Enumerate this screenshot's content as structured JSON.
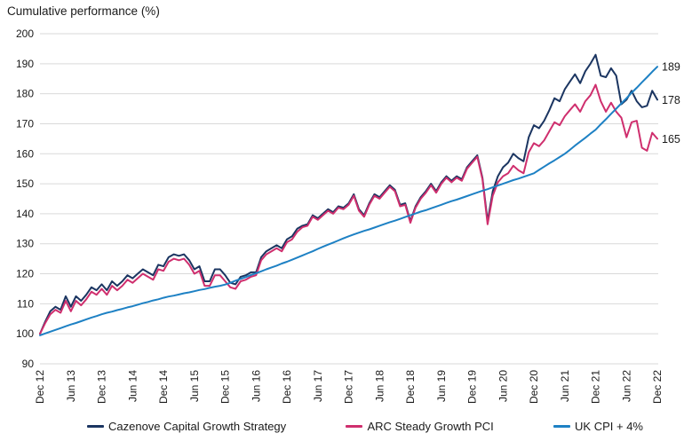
{
  "title": "Cumulative performance (%)",
  "colors": {
    "grid": "#d9d9d9",
    "text": "#1a1a1a",
    "background": "#ffffff"
  },
  "end_labels": [
    {
      "text": "189",
      "value": 189
    },
    {
      "text": "178",
      "value": 178
    },
    {
      "text": "165",
      "value": 165
    }
  ],
  "legend": {
    "items": [
      {
        "label": "Cazenove Capital Growth Strategy",
        "color": "#1b3561"
      },
      {
        "label": "ARC Steady Growth PCI",
        "color": "#cf2f6e"
      },
      {
        "label": "UK CPI + 4%",
        "color": "#1e81c4"
      }
    ]
  },
  "chart_data": {
    "type": "line",
    "title": "Cumulative performance (%)",
    "ylabel": "",
    "xlabel": "",
    "ylim": [
      90,
      200
    ],
    "y_ticks": [
      90,
      100,
      110,
      120,
      130,
      140,
      150,
      160,
      170,
      180,
      190,
      200
    ],
    "x_tick_labels": [
      "Dec 12",
      "Jun 13",
      "Dec 13",
      "Jun 14",
      "Dec 14",
      "Jun 15",
      "Dec 15",
      "Jun 16",
      "Dec 16",
      "Jun 17",
      "Dec 17",
      "Jun 18",
      "Dec 18",
      "Jun 19",
      "Dec 19",
      "Jun 20",
      "Dec 20",
      "Jun 21",
      "Dec 21",
      "Jun 22",
      "Dec 22"
    ],
    "x_tick_every_n_points": 6,
    "grid": "horizontal-only",
    "legend_position": "bottom",
    "x_unit": "monthly from Dec 2012 to Dec 2022",
    "series": [
      {
        "name": "Cazenove Capital Growth Strategy",
        "color": "#1b3561",
        "end_value_label": 178,
        "values": [
          100,
          104,
          107.5,
          109,
          108,
          112.5,
          109,
          112.5,
          111,
          113,
          115.5,
          114.5,
          116.5,
          114.5,
          117.5,
          116,
          117.5,
          119.5,
          118.5,
          120,
          121.5,
          120.5,
          119.5,
          123,
          122.5,
          125.5,
          126.5,
          126,
          126.5,
          124.5,
          121.5,
          122.5,
          117.5,
          117.5,
          121.5,
          121.5,
          119.5,
          117,
          116.5,
          119,
          119.5,
          120.5,
          120.5,
          125.5,
          127.5,
          128.5,
          129.5,
          128.5,
          131.5,
          132.5,
          135,
          136,
          136.5,
          139.5,
          138.5,
          140,
          141.5,
          140.5,
          142.5,
          142,
          143.5,
          146.5,
          141.5,
          139.5,
          143.5,
          146.5,
          145.5,
          147.5,
          149.5,
          148,
          143,
          143.5,
          137.5,
          142.5,
          145.5,
          147.5,
          150,
          147.5,
          150.5,
          152.5,
          151,
          152.5,
          151.5,
          155.5,
          157.5,
          159.5,
          152,
          137.5,
          147.5,
          152.5,
          155.5,
          157,
          160,
          158.5,
          157.5,
          165.5,
          169.5,
          168.5,
          171,
          174.5,
          178.5,
          177.5,
          181.5,
          184,
          186.5,
          183.5,
          187.5,
          190,
          193,
          186,
          185.5,
          188.5,
          186,
          176.5,
          178,
          181,
          177.5,
          175.5,
          176,
          181,
          178
        ]
      },
      {
        "name": "ARC Steady Growth PCI",
        "color": "#cf2f6e",
        "end_value_label": 165,
        "values": [
          100,
          103.5,
          106.5,
          108,
          107,
          111,
          107.5,
          111,
          109.5,
          111.5,
          114,
          113,
          115,
          113,
          116,
          114.5,
          116,
          118,
          117,
          118.5,
          120,
          119,
          118,
          121.5,
          121,
          124,
          125,
          124.5,
          125,
          123,
          120,
          121,
          116,
          116,
          119.5,
          119.5,
          117.5,
          115.5,
          115,
          117.5,
          118,
          119,
          119.5,
          124.5,
          126.5,
          127.5,
          128.5,
          127.5,
          130.5,
          131.5,
          134,
          135.5,
          136,
          139,
          138,
          139.5,
          141,
          140,
          142,
          141.5,
          143,
          146,
          141,
          139,
          143,
          146,
          145,
          147,
          149,
          147.5,
          142.5,
          143,
          137,
          142,
          145,
          147,
          149.5,
          147,
          150,
          152,
          150.5,
          152,
          151,
          155,
          157,
          159,
          151.5,
          136.5,
          146,
          150.5,
          152.5,
          153.5,
          156,
          154.5,
          153.5,
          160.5,
          163.5,
          162.5,
          164.5,
          167.5,
          170.5,
          169.5,
          172.5,
          174.5,
          176.5,
          174,
          177.5,
          179.5,
          183,
          177.5,
          174,
          177,
          174,
          172,
          165.5,
          170.5,
          171,
          162,
          161,
          167,
          165
        ]
      },
      {
        "name": "UK CPI + 4%",
        "color": "#1e81c4",
        "end_value_label": 189,
        "values": [
          99.5,
          100.1,
          100.7,
          101.3,
          101.9,
          102.5,
          103.1,
          103.6,
          104.2,
          104.8,
          105.4,
          105.9,
          106.5,
          107,
          107.4,
          107.9,
          108.3,
          108.8,
          109.2,
          109.7,
          110.2,
          110.6,
          111.1,
          111.5,
          112,
          112.4,
          112.7,
          113.1,
          113.5,
          113.8,
          114.2,
          114.6,
          114.9,
          115.3,
          115.7,
          116,
          116.4,
          117,
          117.7,
          118.3,
          118.9,
          119.6,
          120.2,
          120.8,
          121.5,
          122.1,
          122.7,
          123.4,
          124,
          124.7,
          125.4,
          126.1,
          126.8,
          127.5,
          128.3,
          129,
          129.7,
          130.4,
          131.1,
          131.8,
          132.5,
          133.1,
          133.7,
          134.3,
          134.8,
          135.4,
          136,
          136.6,
          137.2,
          137.7,
          138.3,
          138.9,
          139.5,
          140.1,
          140.7,
          141.2,
          141.8,
          142.4,
          143,
          143.6,
          144.2,
          144.7,
          145.3,
          145.9,
          146.5,
          147.1,
          147.7,
          148.2,
          148.8,
          149.4,
          150,
          150.6,
          151.2,
          151.7,
          152.3,
          152.9,
          153.5,
          154.6,
          155.7,
          156.8,
          157.8,
          158.9,
          160,
          161.3,
          162.7,
          164,
          165.3,
          166.7,
          168,
          169.8,
          171.5,
          173.3,
          175,
          176.8,
          178.5,
          180.3,
          182,
          183.8,
          185.5,
          187.3,
          189
        ]
      }
    ]
  }
}
